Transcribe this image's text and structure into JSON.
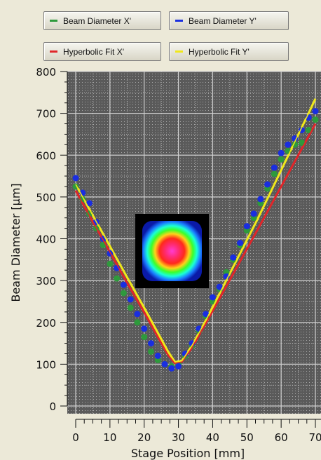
{
  "legend": {
    "items": [
      {
        "label": "Beam Diameter X'",
        "color": "#2e9a3c"
      },
      {
        "label": "Beam Diameter Y'",
        "color": "#1a2ee0"
      },
      {
        "label": "Hyperbolic Fit X'",
        "color": "#e0262a"
      },
      {
        "label": "Hyperbolic Fit Y'",
        "color": "#f0e81a"
      }
    ]
  },
  "chart_data": {
    "type": "scatter",
    "xlabel": "Stage Position [mm]",
    "ylabel": "Beam Diameter [µm]",
    "xlim": [
      0,
      70
    ],
    "ylim": [
      0,
      800
    ],
    "xticks": [
      "0",
      "10",
      "20",
      "30",
      "40",
      "50",
      "60",
      "70"
    ],
    "yticks": [
      "0",
      "100",
      "200",
      "300",
      "400",
      "500",
      "600",
      "700",
      "800"
    ],
    "grid": true,
    "series": [
      {
        "name": "Beam Diameter X'",
        "kind": "points",
        "color": "#2e9a3c",
        "x": [
          0,
          2,
          4,
          6,
          8,
          10,
          12,
          14,
          16,
          18,
          20,
          22,
          24,
          26,
          28,
          30,
          32,
          34,
          36,
          38,
          40,
          42,
          44,
          46,
          48,
          50,
          52,
          54,
          56,
          58,
          60,
          62,
          64,
          66,
          68,
          70
        ],
        "y": [
          525,
          495,
          460,
          425,
          385,
          340,
          305,
          270,
          235,
          200,
          165,
          130,
          110,
          100,
          95,
          100,
          120,
          145,
          180,
          215,
          250,
          280,
          320,
          350,
          385,
          420,
          450,
          485,
          520,
          555,
          590,
          610,
          625,
          630,
          660,
          685
        ]
      },
      {
        "name": "Beam Diameter Y'",
        "kind": "points",
        "color": "#1a2ee0",
        "x": [
          0,
          2,
          4,
          6,
          8,
          10,
          12,
          14,
          16,
          18,
          20,
          22,
          24,
          26,
          28,
          30,
          32,
          34,
          36,
          38,
          40,
          42,
          44,
          46,
          48,
          50,
          52,
          54,
          56,
          58,
          60,
          62,
          64,
          66,
          68,
          70
        ],
        "y": [
          545,
          510,
          485,
          440,
          400,
          365,
          330,
          290,
          255,
          220,
          185,
          150,
          120,
          100,
          90,
          95,
          125,
          150,
          185,
          220,
          260,
          285,
          310,
          355,
          390,
          430,
          460,
          495,
          530,
          570,
          605,
          625,
          640,
          660,
          690,
          705
        ]
      },
      {
        "name": "Hyperbolic Fit X'",
        "kind": "line",
        "color": "#e0262a",
        "x": [
          0,
          5,
          10,
          15,
          20,
          24,
          27,
          29,
          31,
          34,
          38,
          43,
          48,
          53,
          58,
          63,
          68,
          70
        ],
        "y": [
          515,
          441,
          368,
          295,
          224,
          165,
          122,
          102,
          106,
          140,
          198,
          272,
          346,
          420,
          495,
          570,
          645,
          675
        ]
      },
      {
        "name": "Hyperbolic Fit Y'",
        "kind": "line",
        "color": "#f0e81a",
        "x": [
          0,
          5,
          10,
          15,
          20,
          24,
          27,
          29,
          31,
          34,
          38,
          43,
          48,
          53,
          58,
          63,
          68,
          70
        ],
        "y": [
          530,
          456,
          382,
          308,
          235,
          175,
          130,
          105,
          108,
          145,
          205,
          285,
          365,
          445,
          530,
          615,
          700,
          735
        ]
      }
    ],
    "inset_image": "beam-profile-heatmap"
  }
}
